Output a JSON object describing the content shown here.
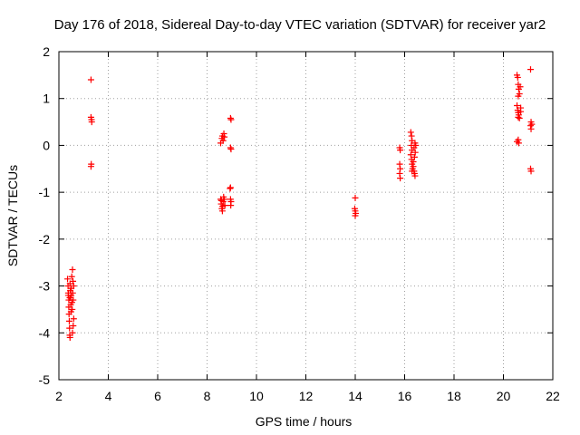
{
  "chart_data": {
    "type": "scatter",
    "title": "Day 176 of 2018, Sidereal Day-to-day VTEC variation (SDTVAR) for receiver yar2",
    "xlabel": "GPS time / hours",
    "ylabel": "SDTVAR / TECUs",
    "xlim": [
      2,
      22
    ],
    "ylim": [
      -5,
      2
    ],
    "xticks": [
      2,
      4,
      6,
      8,
      10,
      12,
      14,
      16,
      18,
      20,
      22
    ],
    "yticks": [
      -5,
      -4,
      -3,
      -2,
      -1,
      0,
      1,
      2
    ],
    "grid": true,
    "marker": "+",
    "colors": {
      "points": "#ff0000",
      "grid": "#a0a0a0",
      "axes": "#000000"
    },
    "series": [
      {
        "name": "SDTVAR",
        "points": [
          [
            2.35,
            -2.85
          ],
          [
            2.37,
            -3.0
          ],
          [
            2.38,
            -3.15
          ],
          [
            2.4,
            -3.3
          ],
          [
            2.4,
            -3.45
          ],
          [
            2.41,
            -3.6
          ],
          [
            2.42,
            -3.75
          ],
          [
            2.43,
            -3.9
          ],
          [
            2.44,
            -4.05
          ],
          [
            2.45,
            -4.1
          ],
          [
            2.45,
            -2.95
          ],
          [
            2.46,
            -3.1
          ],
          [
            2.47,
            -3.25
          ],
          [
            2.48,
            -3.4
          ],
          [
            2.49,
            -3.55
          ],
          [
            2.5,
            -3.2
          ],
          [
            2.5,
            -3.05
          ],
          [
            2.52,
            -2.8
          ],
          [
            2.53,
            -3.35
          ],
          [
            2.54,
            -3.5
          ],
          [
            2.55,
            -2.65
          ],
          [
            2.55,
            -4.0
          ],
          [
            2.56,
            -3.15
          ],
          [
            2.57,
            -2.9
          ],
          [
            2.58,
            -3.3
          ],
          [
            2.58,
            -3.85
          ],
          [
            2.6,
            -3.0
          ],
          [
            2.6,
            -3.7
          ],
          [
            2.38,
            -3.2
          ],
          [
            2.44,
            -3.25
          ],
          [
            3.3,
            1.4
          ],
          [
            3.32,
            0.55
          ],
          [
            3.33,
            0.5
          ],
          [
            3.3,
            0.6
          ],
          [
            3.31,
            -0.4
          ],
          [
            3.3,
            -0.45
          ],
          [
            8.55,
            0.05
          ],
          [
            8.6,
            0.15
          ],
          [
            8.62,
            0.2
          ],
          [
            8.65,
            0.1
          ],
          [
            8.68,
            0.25
          ],
          [
            8.7,
            0.18
          ],
          [
            8.55,
            -1.15
          ],
          [
            8.57,
            -1.25
          ],
          [
            8.6,
            -1.35
          ],
          [
            8.62,
            -1.4
          ],
          [
            8.63,
            -1.3
          ],
          [
            8.65,
            -1.2
          ],
          [
            8.67,
            -1.1
          ],
          [
            8.7,
            -1.15
          ],
          [
            8.72,
            -1.28
          ],
          [
            8.58,
            -1.18
          ],
          [
            8.95,
            0.58
          ],
          [
            8.97,
            0.55
          ],
          [
            8.95,
            -0.05
          ],
          [
            8.97,
            -0.08
          ],
          [
            8.93,
            -0.92
          ],
          [
            8.95,
            -0.9
          ],
          [
            8.95,
            -1.15
          ],
          [
            8.97,
            -1.2
          ],
          [
            8.96,
            -1.28
          ],
          [
            14.0,
            -1.12
          ],
          [
            13.98,
            -1.35
          ],
          [
            14.0,
            -1.4
          ],
          [
            14.0,
            -1.5
          ],
          [
            14.02,
            -1.45
          ],
          [
            15.8,
            -0.05
          ],
          [
            15.82,
            -0.1
          ],
          [
            15.8,
            -0.4
          ],
          [
            15.82,
            -0.5
          ],
          [
            15.8,
            -0.6
          ],
          [
            15.82,
            -0.7
          ],
          [
            16.25,
            0.28
          ],
          [
            16.28,
            0.2
          ],
          [
            16.3,
            0.1
          ],
          [
            16.27,
            0.0
          ],
          [
            16.3,
            -0.1
          ],
          [
            16.25,
            -0.2
          ],
          [
            16.28,
            -0.3
          ],
          [
            16.3,
            -0.4
          ],
          [
            16.32,
            -0.5
          ],
          [
            16.35,
            -0.45
          ],
          [
            16.38,
            -0.55
          ],
          [
            16.4,
            -0.6
          ],
          [
            16.42,
            -0.65
          ],
          [
            16.35,
            -0.35
          ],
          [
            16.4,
            -0.25
          ],
          [
            16.43,
            -0.15
          ],
          [
            16.45,
            0.0
          ],
          [
            16.38,
            -0.05
          ],
          [
            16.42,
            0.05
          ],
          [
            16.3,
            -0.55
          ],
          [
            20.55,
            1.5
          ],
          [
            20.58,
            1.45
          ],
          [
            20.6,
            1.3
          ],
          [
            20.62,
            1.2
          ],
          [
            20.65,
            1.1
          ],
          [
            20.6,
            1.05
          ],
          [
            20.55,
            0.85
          ],
          [
            20.58,
            0.75
          ],
          [
            20.6,
            0.7
          ],
          [
            20.62,
            0.65
          ],
          [
            20.6,
            0.6
          ],
          [
            20.65,
            0.58
          ],
          [
            20.7,
            0.8
          ],
          [
            20.7,
            0.72
          ],
          [
            20.55,
            0.08
          ],
          [
            20.6,
            0.12
          ],
          [
            20.62,
            0.05
          ],
          [
            20.68,
            1.25
          ],
          [
            21.1,
            1.62
          ],
          [
            21.12,
            0.5
          ],
          [
            21.15,
            0.45
          ],
          [
            21.1,
            0.42
          ],
          [
            21.12,
            0.35
          ],
          [
            21.1,
            -0.5
          ],
          [
            21.12,
            -0.55
          ]
        ]
      }
    ]
  }
}
